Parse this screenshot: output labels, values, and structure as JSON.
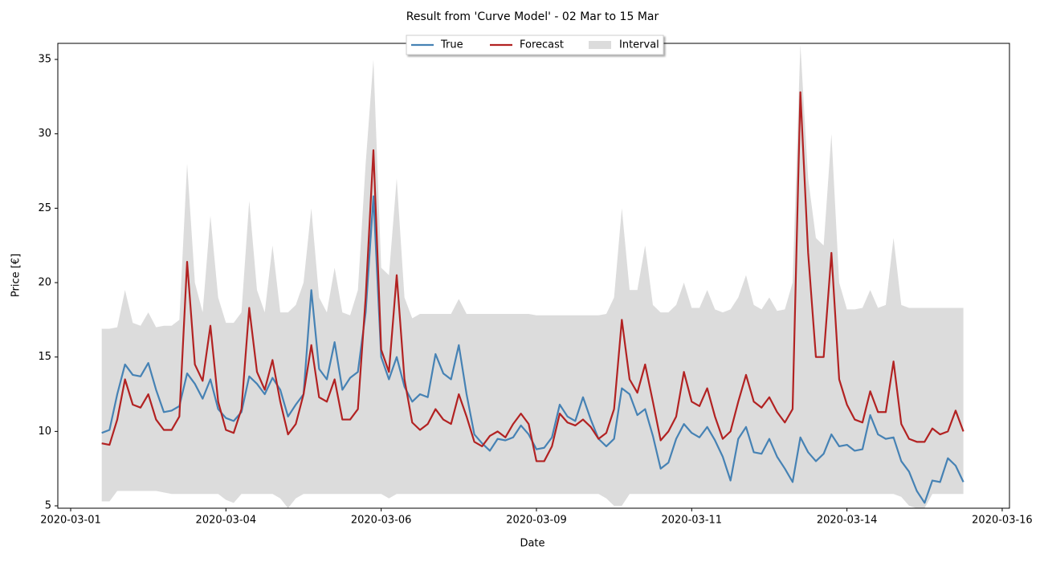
{
  "chart_data": {
    "type": "line",
    "title": "Result from 'Curve Model' - 02 Mar to 15 Mar",
    "xlabel": "Date",
    "ylabel": "Price [€]",
    "legend": "upper center",
    "xlim": [
      1.293,
      16.617
    ],
    "ylim": [
      4.84,
      36.08
    ],
    "xticks": [
      {
        "value": 1.5,
        "label": "2020-03-01"
      },
      {
        "value": 4,
        "label": "2020-03-04"
      },
      {
        "value": 6.5,
        "label": "2020-03-06"
      },
      {
        "value": 9,
        "label": "2020-03-09"
      },
      {
        "value": 11.5,
        "label": "2020-03-11"
      },
      {
        "value": 14,
        "label": "2020-03-14"
      },
      {
        "value": 16.5,
        "label": "2020-03-16"
      }
    ],
    "yticks": [
      5,
      10,
      15,
      20,
      25,
      30,
      35
    ],
    "x": [
      2,
      2.125,
      2.25,
      2.375,
      2.5,
      2.625,
      2.75,
      2.875,
      3,
      3.125,
      3.25,
      3.375,
      3.5,
      3.625,
      3.75,
      3.875,
      4,
      4.125,
      4.25,
      4.375,
      4.5,
      4.625,
      4.75,
      4.875,
      5,
      5.125,
      5.25,
      5.375,
      5.5,
      5.625,
      5.75,
      5.875,
      6,
      6.125,
      6.25,
      6.375,
      6.5,
      6.625,
      6.75,
      6.875,
      7,
      7.125,
      7.25,
      7.375,
      7.5,
      7.625,
      7.75,
      7.875,
      8,
      8.125,
      8.25,
      8.375,
      8.5,
      8.625,
      8.75,
      8.875,
      9,
      9.125,
      9.25,
      9.375,
      9.5,
      9.625,
      9.75,
      9.875,
      10,
      10.125,
      10.25,
      10.375,
      10.5,
      10.625,
      10.75,
      10.875,
      11,
      11.125,
      11.25,
      11.375,
      11.5,
      11.625,
      11.75,
      11.875,
      12,
      12.125,
      12.25,
      12.375,
      12.5,
      12.625,
      12.75,
      12.875,
      13,
      13.125,
      13.25,
      13.375,
      13.5,
      13.625,
      13.75,
      13.875,
      14,
      14.125,
      14.25,
      14.375,
      14.5,
      14.625,
      14.75,
      14.875,
      15,
      15.125,
      15.25,
      15.375,
      15.5,
      15.625,
      15.75,
      15.875
    ],
    "band": {
      "name": "Interval",
      "color": "#dcdcdc",
      "upper": [
        16.9,
        16.9,
        17.0,
        19.5,
        17.3,
        17.1,
        18.0,
        17.0,
        17.1,
        17.1,
        17.5,
        28.0,
        20.0,
        18.0,
        24.5,
        19.0,
        17.3,
        17.3,
        18.0,
        25.5,
        19.5,
        18.0,
        22.5,
        18.0,
        18.0,
        18.5,
        20.0,
        25.0,
        19.0,
        18.0,
        21.0,
        18.0,
        17.8,
        19.5,
        28.0,
        35.0,
        21.0,
        20.5,
        27.0,
        19.0,
        17.6,
        17.9,
        17.9,
        17.9,
        17.9,
        17.9,
        18.9,
        17.9,
        17.9,
        17.9,
        17.9,
        17.9,
        17.9,
        17.9,
        17.9,
        17.9,
        17.8,
        17.8,
        17.8,
        17.8,
        17.8,
        17.8,
        17.8,
        17.8,
        17.8,
        17.9,
        19.0,
        25.0,
        19.5,
        19.5,
        22.5,
        18.5,
        18.0,
        18.0,
        18.5,
        20.0,
        18.3,
        18.3,
        19.5,
        18.2,
        18.0,
        18.2,
        19.0,
        20.5,
        18.5,
        18.2,
        19.0,
        18.1,
        18.2,
        20.0,
        36.0,
        27.0,
        23.0,
        22.5,
        30.0,
        20.0,
        18.2,
        18.2,
        18.3,
        19.5,
        18.3,
        18.5,
        23.0,
        18.5,
        18.3,
        18.3,
        18.3,
        18.3,
        18.3,
        18.3,
        18.3,
        18.3
      ],
      "lower": [
        5.3,
        5.3,
        6.0,
        6.0,
        6.0,
        6.0,
        6.0,
        6.0,
        5.9,
        5.8,
        5.8,
        5.8,
        5.8,
        5.8,
        5.8,
        5.8,
        5.4,
        5.2,
        5.8,
        5.8,
        5.8,
        5.8,
        5.8,
        5.5,
        4.84,
        5.5,
        5.8,
        5.8,
        5.8,
        5.8,
        5.8,
        5.8,
        5.8,
        5.8,
        5.8,
        5.8,
        5.8,
        5.5,
        5.8,
        5.8,
        5.8,
        5.8,
        5.8,
        5.8,
        5.8,
        5.8,
        5.8,
        5.8,
        5.8,
        5.8,
        5.8,
        5.8,
        5.8,
        5.8,
        5.8,
        5.8,
        5.8,
        5.8,
        5.8,
        5.8,
        5.8,
        5.8,
        5.8,
        5.8,
        5.8,
        5.5,
        5.0,
        5.0,
        5.8,
        5.8,
        5.8,
        5.8,
        5.8,
        5.8,
        5.8,
        5.8,
        5.8,
        5.8,
        5.8,
        5.8,
        5.8,
        5.8,
        5.8,
        5.8,
        5.8,
        5.8,
        5.8,
        5.8,
        5.8,
        5.8,
        5.8,
        5.8,
        5.8,
        5.8,
        5.8,
        5.8,
        5.8,
        5.8,
        5.8,
        5.8,
        5.8,
        5.8,
        5.8,
        5.6,
        5.0,
        4.84,
        4.84,
        5.8,
        5.8,
        5.8,
        5.8,
        5.8
      ]
    },
    "series": [
      {
        "name": "True",
        "color": "#4682b4",
        "values": [
          9.9,
          10.1,
          12.5,
          14.5,
          13.8,
          13.7,
          14.6,
          12.8,
          11.3,
          11.4,
          11.7,
          13.9,
          13.2,
          12.2,
          13.5,
          11.5,
          10.9,
          10.7,
          11.3,
          13.7,
          13.2,
          12.5,
          13.6,
          12.8,
          11.0,
          11.8,
          12.5,
          19.5,
          14.2,
          13.5,
          16.0,
          12.8,
          13.6,
          14.0,
          18.0,
          25.8,
          15.0,
          13.5,
          15.0,
          13.0,
          12.0,
          12.5,
          12.3,
          15.2,
          13.9,
          13.5,
          15.8,
          12.5,
          9.8,
          9.2,
          8.7,
          9.5,
          9.4,
          9.6,
          10.4,
          9.8,
          8.8,
          8.9,
          9.6,
          11.8,
          11.0,
          10.7,
          12.3,
          10.8,
          9.5,
          9.0,
          9.5,
          12.9,
          12.5,
          11.1,
          11.5,
          9.7,
          7.5,
          7.9,
          9.5,
          10.5,
          9.9,
          9.6,
          10.3,
          9.4,
          8.3,
          6.7,
          9.5,
          10.3,
          8.6,
          8.5,
          9.5,
          8.3,
          7.5,
          6.6,
          9.6,
          8.6,
          8.0,
          8.5,
          9.8,
          9.0,
          9.1,
          8.7,
          8.8,
          11.1,
          9.8,
          9.5,
          9.6,
          8.0,
          7.3,
          6.0,
          5.2,
          6.7,
          6.6,
          8.2,
          7.7,
          6.6
        ]
      },
      {
        "name": "Forecast",
        "color": "#b22222",
        "values": [
          9.2,
          9.1,
          10.8,
          13.5,
          11.8,
          11.6,
          12.5,
          10.8,
          10.1,
          10.1,
          11.0,
          21.4,
          14.5,
          13.4,
          17.1,
          12.0,
          10.1,
          9.9,
          11.5,
          18.3,
          14.0,
          12.8,
          14.8,
          12.0,
          9.8,
          10.5,
          12.5,
          15.8,
          12.3,
          12.0,
          13.5,
          10.8,
          10.8,
          11.5,
          19.0,
          28.9,
          15.5,
          14.0,
          20.5,
          13.5,
          10.6,
          10.1,
          10.5,
          11.5,
          10.8,
          10.5,
          12.5,
          11.0,
          9.3,
          9.0,
          9.7,
          10.0,
          9.6,
          10.5,
          11.2,
          10.5,
          8.0,
          8.0,
          9.0,
          11.2,
          10.6,
          10.4,
          10.8,
          10.3,
          9.5,
          9.9,
          11.5,
          17.5,
          13.5,
          12.6,
          14.5,
          12.0,
          9.4,
          10.0,
          11.0,
          14.0,
          12.0,
          11.7,
          12.9,
          11.0,
          9.5,
          10.0,
          12.0,
          13.8,
          12.0,
          11.6,
          12.3,
          11.3,
          10.6,
          11.5,
          32.8,
          22.0,
          15.0,
          15.0,
          22.0,
          13.5,
          11.8,
          10.8,
          10.6,
          12.7,
          11.3,
          11.3,
          14.7,
          10.5,
          9.5,
          9.3,
          9.3,
          10.2,
          9.8,
          10.0,
          11.4,
          10.0
        ]
      }
    ]
  }
}
